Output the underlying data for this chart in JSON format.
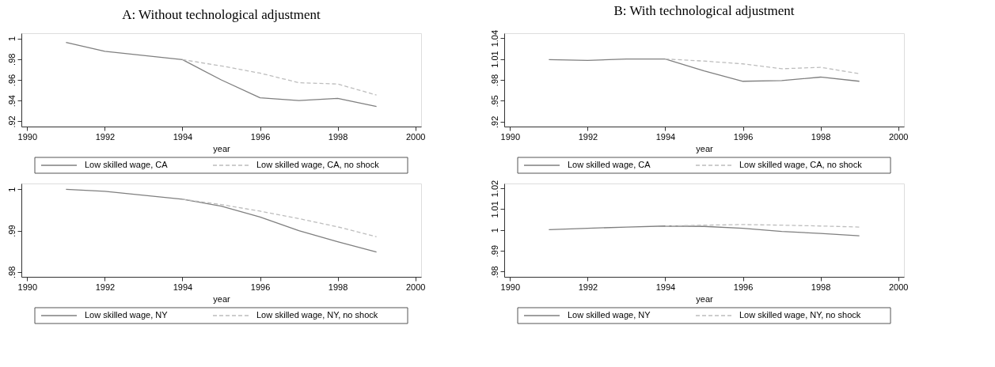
{
  "chart_data": [
    {
      "type": "line",
      "title": "A: Without technological adjustment",
      "xlabel": "year",
      "xlim": [
        1989.85,
        2000.15
      ],
      "xticks": [
        1990,
        1992,
        1994,
        1996,
        1998,
        2000
      ],
      "ylim": [
        0.915,
        1.005
      ],
      "yticks": [
        {
          "value": 0.92,
          "label": ".92"
        },
        {
          "value": 0.94,
          "label": ".94"
        },
        {
          "value": 0.96,
          "label": ".96"
        },
        {
          "value": 0.98,
          "label": ".98"
        },
        1
      ],
      "grid": false,
      "legend": "bottom",
      "marker": "none",
      "series": [
        {
          "name": "Low skilled wage, CA",
          "color": "#7f7f7f",
          "line_style": "solid",
          "x": [
            1991,
            1992,
            1994,
            1995,
            1996,
            1997,
            1998,
            1999
          ],
          "values": [
            0.9962,
            0.9876,
            0.9795,
            0.96,
            0.9427,
            0.94,
            0.9422,
            0.9343
          ]
        },
        {
          "name": "Low skilled wage, CA, no shock",
          "color": "#bdbdbd",
          "line_style": "dashed",
          "x": [
            1994,
            1995,
            1996,
            1997,
            1998,
            1999
          ],
          "values": [
            0.9795,
            0.9735,
            0.9665,
            0.9573,
            0.956,
            0.9454
          ]
        }
      ]
    },
    {
      "type": "line",
      "title": "B: With technological adjustment",
      "xlabel": "year",
      "xlim": [
        1989.85,
        2000.15
      ],
      "xticks": [
        1990,
        1992,
        1994,
        1996,
        1998,
        2000
      ],
      "ylim": [
        0.913,
        1.047
      ],
      "yticks": [
        {
          "value": 0.92,
          "label": ".92"
        },
        {
          "value": 0.95,
          "label": ".95"
        },
        {
          "value": 0.98,
          "label": ".98"
        },
        1.01,
        1.04
      ],
      "grid": false,
      "legend": "bottom",
      "marker": "none",
      "series": [
        {
          "name": "Low skilled wage, CA",
          "color": "#7f7f7f",
          "line_style": "solid",
          "x": [
            1991,
            1992,
            1993,
            1994,
            1995,
            1996,
            1997,
            1998,
            1999
          ],
          "values": [
            1.009,
            1.008,
            1.01,
            1.01,
            0.993,
            0.978,
            0.979,
            0.984,
            0.978
          ]
        },
        {
          "name": "Low skilled wage, CA, no shock",
          "color": "#bdbdbd",
          "line_style": "dashed",
          "x": [
            1994,
            1995,
            1996,
            1997,
            1998,
            1999
          ],
          "values": [
            1.01,
            1.007,
            1.003,
            0.996,
            0.998,
            0.989
          ]
        }
      ]
    },
    {
      "type": "line",
      "xlabel": "year",
      "xlim": [
        1989.85,
        2000.15
      ],
      "xticks": [
        1990,
        1992,
        1994,
        1996,
        1998,
        2000
      ],
      "ylim": [
        0.9788,
        1.0014
      ],
      "yticks": [
        {
          "value": 0.98,
          "label": ".98"
        },
        {
          "value": 0.99,
          "label": ".99"
        },
        1
      ],
      "grid": false,
      "legend": "bottom",
      "marker": "none",
      "series": [
        {
          "name": "Low skilled wage, NY",
          "color": "#7f7f7f",
          "line_style": "solid",
          "x": [
            1991,
            1992,
            1994,
            1995,
            1996,
            1997,
            1998,
            1999
          ],
          "values": [
            1.0,
            0.9995,
            0.9976,
            0.9959,
            0.9933,
            0.99,
            0.9873,
            0.9848
          ]
        },
        {
          "name": "Low skilled wage, NY, no shock",
          "color": "#bdbdbd",
          "line_style": "dashed",
          "x": [
            1994,
            1995,
            1996,
            1997,
            1998,
            1999
          ],
          "values": [
            0.9976,
            0.9963,
            0.9947,
            0.9929,
            0.9909,
            0.9885
          ]
        }
      ]
    },
    {
      "type": "line",
      "xlabel": "year",
      "xlim": [
        1989.85,
        2000.15
      ],
      "xticks": [
        1990,
        1992,
        1994,
        1996,
        1998,
        2000
      ],
      "ylim": [
        0.9775,
        1.0223
      ],
      "yticks": [
        {
          "value": 0.98,
          "label": ".98"
        },
        {
          "value": 0.99,
          "label": ".99"
        },
        1,
        1.01,
        1.02
      ],
      "grid": false,
      "legend": "bottom",
      "marker": "none",
      "series": [
        {
          "name": "Low skilled wage, NY",
          "color": "#7f7f7f",
          "line_style": "solid",
          "x": [
            1991,
            1992,
            1993,
            1994,
            1995,
            1996,
            1997,
            1998,
            1999
          ],
          "values": [
            1.0001,
            1.0008,
            1.0014,
            1.0019,
            1.0017,
            1.0008,
            0.9993,
            0.9983,
            0.9972
          ]
        },
        {
          "name": "Low skilled wage, NY, no shock",
          "color": "#bdbdbd",
          "line_style": "dashed",
          "x": [
            1994,
            1995,
            1996,
            1997,
            1998,
            1999
          ],
          "values": [
            1.0019,
            1.0023,
            1.0026,
            1.0023,
            1.0019,
            1.0014
          ]
        }
      ]
    }
  ]
}
